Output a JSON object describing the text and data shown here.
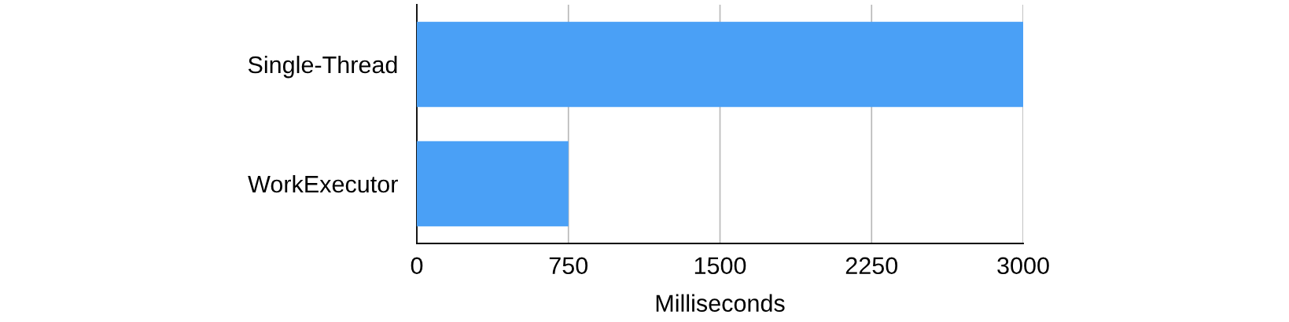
{
  "chart_data": {
    "type": "bar",
    "orientation": "horizontal",
    "categories": [
      "Single-Thread",
      "WorkExecutor"
    ],
    "values": [
      3000,
      750
    ],
    "color": "#4aa0f6",
    "xlabel": "Milliseconds",
    "xlim": [
      0,
      3000
    ],
    "xticks": [
      0,
      750,
      1500,
      2250,
      3000
    ],
    "grid": "x"
  }
}
